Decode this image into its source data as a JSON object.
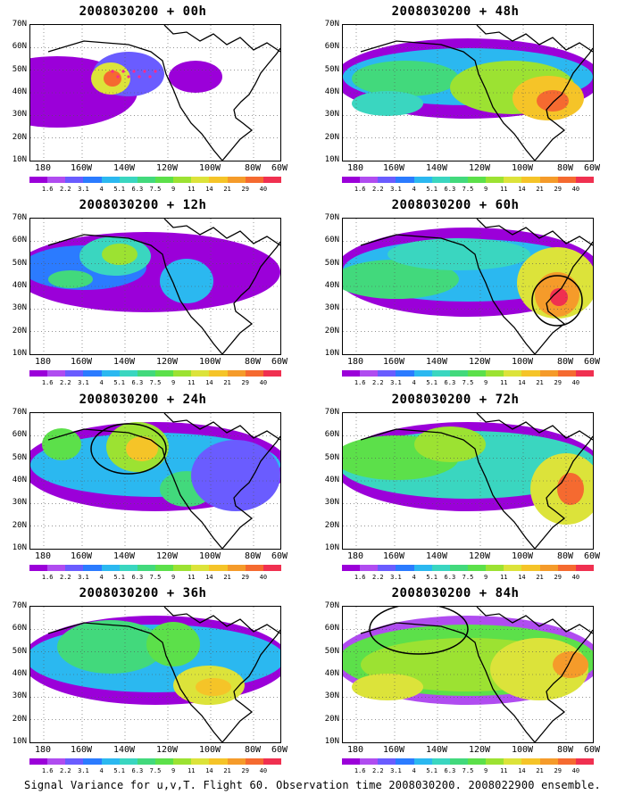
{
  "footer": "Signal Variance for u,v,T. Flight 60. Observation time 2008030200. 2008022900 ensemble.",
  "y_ticks": [
    "70N",
    "60N",
    "50N",
    "40N",
    "30N",
    "20N",
    "10N"
  ],
  "x_ticks": [
    "180",
    "160W",
    "140W",
    "120W",
    "100W",
    "80W",
    "60W"
  ],
  "colorbar": {
    "labels": [
      "1.6",
      "2.2",
      "3.1",
      "4",
      "5.1",
      "6.3",
      "7.5",
      "9",
      "11",
      "14",
      "21",
      "29",
      "40"
    ],
    "colors": [
      "#9b00d9",
      "#b04cf0",
      "#6a5cff",
      "#2b7bff",
      "#2bb8f0",
      "#3ad6c0",
      "#42d97c",
      "#5ce04a",
      "#9ce232",
      "#dce33a",
      "#f5c428",
      "#f59b2a",
      "#f56a30",
      "#f03050"
    ]
  },
  "panels": [
    {
      "title": "2008030200 + 00h"
    },
    {
      "title": "2008030200 + 48h"
    },
    {
      "title": "2008030200 + 12h"
    },
    {
      "title": "2008030200 + 60h"
    },
    {
      "title": "2008030200 + 24h"
    },
    {
      "title": "2008030200 + 72h"
    },
    {
      "title": "2008030200 + 36h"
    },
    {
      "title": "2008030200 + 84h"
    }
  ]
}
